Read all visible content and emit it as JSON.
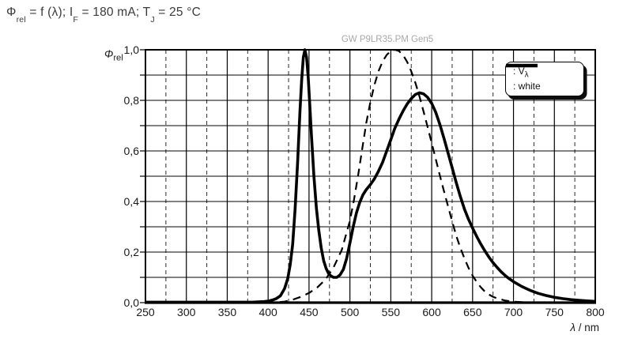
{
  "title": {
    "parts": [
      {
        "t": "Φ"
      },
      {
        "t": "rel",
        "sub": true
      },
      {
        "t": " = f (λ); I"
      },
      {
        "t": "F",
        "sub": true
      },
      {
        "t": " = 180 mA; T"
      },
      {
        "t": "J",
        "sub": true
      },
      {
        "t": " = 25 °C"
      }
    ]
  },
  "watermark": "GW P9LR35.PM Gen5",
  "legend": {
    "entries": [
      {
        "style": "dashed",
        "prefix": ": V",
        "sub": "λ"
      },
      {
        "style": "solid",
        "prefix": ": white",
        "sub": ""
      }
    ]
  },
  "chart_data": {
    "type": "line",
    "title": "GW P9LR35.PM Gen5",
    "ylabel_parts": [
      {
        "t": "Φ",
        "italic": true
      },
      {
        "t": "rel",
        "sub": true
      }
    ],
    "xlabel_parts": [
      {
        "t": "λ",
        "italic": true
      },
      {
        "t": " / nm"
      }
    ],
    "xlim": [
      250,
      800
    ],
    "ylim": [
      0,
      1
    ],
    "x_major_step": 50,
    "x_minor_step": 25,
    "y_minor_step": 0.1,
    "grid": true,
    "legend_position": "top-right-inside",
    "x_ticks": [
      {
        "v": 250,
        "label": "250"
      },
      {
        "v": 300,
        "label": "300"
      },
      {
        "v": 350,
        "label": "350"
      },
      {
        "v": 400,
        "label": "400"
      },
      {
        "v": 450,
        "label": "450"
      },
      {
        "v": 500,
        "label": "500"
      },
      {
        "v": 550,
        "label": "550"
      },
      {
        "v": 600,
        "label": "600"
      },
      {
        "v": 650,
        "label": "650"
      },
      {
        "v": 700,
        "label": "700"
      },
      {
        "v": 750,
        "label": "750"
      },
      {
        "v": 800,
        "label": "800"
      }
    ],
    "y_ticks": [
      {
        "v": 1.0,
        "label": "1,0"
      },
      {
        "v": 0.8,
        "label": "0,8"
      },
      {
        "v": 0.6,
        "label": "0,6"
      },
      {
        "v": 0.4,
        "label": "0,4"
      },
      {
        "v": 0.2,
        "label": "0,2"
      },
      {
        "v": 0.0,
        "label": "0,0"
      }
    ],
    "series": [
      {
        "name": "V_lambda",
        "style": "dashed",
        "peak": {
          "x": 555,
          "y": 1.0
        },
        "points": [
          [
            250,
            0
          ],
          [
            400,
            0.0004
          ],
          [
            410,
            0.0012
          ],
          [
            420,
            0.004
          ],
          [
            430,
            0.0116
          ],
          [
            440,
            0.023
          ],
          [
            450,
            0.038
          ],
          [
            460,
            0.06
          ],
          [
            470,
            0.091
          ],
          [
            480,
            0.139
          ],
          [
            490,
            0.208
          ],
          [
            500,
            0.323
          ],
          [
            505,
            0.407
          ],
          [
            510,
            0.503
          ],
          [
            515,
            0.608
          ],
          [
            520,
            0.71
          ],
          [
            525,
            0.793
          ],
          [
            530,
            0.862
          ],
          [
            535,
            0.915
          ],
          [
            540,
            0.954
          ],
          [
            545,
            0.98
          ],
          [
            550,
            0.995
          ],
          [
            555,
            1.0
          ],
          [
            560,
            0.995
          ],
          [
            565,
            0.979
          ],
          [
            570,
            0.952
          ],
          [
            575,
            0.915
          ],
          [
            580,
            0.87
          ],
          [
            585,
            0.816
          ],
          [
            590,
            0.757
          ],
          [
            595,
            0.695
          ],
          [
            600,
            0.631
          ],
          [
            605,
            0.567
          ],
          [
            610,
            0.503
          ],
          [
            615,
            0.441
          ],
          [
            620,
            0.381
          ],
          [
            625,
            0.321
          ],
          [
            630,
            0.265
          ],
          [
            635,
            0.217
          ],
          [
            640,
            0.175
          ],
          [
            645,
            0.138
          ],
          [
            650,
            0.107
          ],
          [
            655,
            0.082
          ],
          [
            660,
            0.061
          ],
          [
            665,
            0.044
          ],
          [
            670,
            0.032
          ],
          [
            675,
            0.023
          ],
          [
            680,
            0.017
          ],
          [
            690,
            0.0082
          ],
          [
            700,
            0.0041
          ],
          [
            710,
            0.0021
          ],
          [
            720,
            0.001
          ],
          [
            730,
            0.0005
          ],
          [
            750,
            0.0002
          ],
          [
            800,
            0
          ]
        ]
      },
      {
        "name": "white",
        "style": "solid",
        "peak": {
          "x": 445,
          "y": 1.0
        },
        "secondary_peak": {
          "x": 585,
          "y": 0.83
        },
        "dip": {
          "x": 482,
          "y": 0.1
        },
        "points": [
          [
            250,
            0.002
          ],
          [
            380,
            0.002
          ],
          [
            395,
            0.004
          ],
          [
            400,
            0.006
          ],
          [
            405,
            0.01
          ],
          [
            410,
            0.016
          ],
          [
            415,
            0.027
          ],
          [
            420,
            0.055
          ],
          [
            424,
            0.095
          ],
          [
            427,
            0.15
          ],
          [
            430,
            0.23
          ],
          [
            433,
            0.37
          ],
          [
            436,
            0.55
          ],
          [
            439,
            0.76
          ],
          [
            441,
            0.88
          ],
          [
            443,
            0.97
          ],
          [
            445,
            1.0
          ],
          [
            447,
            0.97
          ],
          [
            449,
            0.89
          ],
          [
            451,
            0.78
          ],
          [
            453,
            0.66
          ],
          [
            456,
            0.5
          ],
          [
            459,
            0.375
          ],
          [
            462,
            0.285
          ],
          [
            465,
            0.215
          ],
          [
            468,
            0.165
          ],
          [
            471,
            0.135
          ],
          [
            474,
            0.115
          ],
          [
            477,
            0.105
          ],
          [
            480,
            0.1
          ],
          [
            484,
            0.1
          ],
          [
            488,
            0.11
          ],
          [
            492,
            0.132
          ],
          [
            496,
            0.175
          ],
          [
            500,
            0.235
          ],
          [
            504,
            0.3
          ],
          [
            508,
            0.355
          ],
          [
            512,
            0.397
          ],
          [
            516,
            0.427
          ],
          [
            520,
            0.447
          ],
          [
            525,
            0.467
          ],
          [
            530,
            0.49
          ],
          [
            535,
            0.52
          ],
          [
            540,
            0.555
          ],
          [
            545,
            0.6
          ],
          [
            550,
            0.645
          ],
          [
            555,
            0.69
          ],
          [
            560,
            0.726
          ],
          [
            565,
            0.758
          ],
          [
            570,
            0.786
          ],
          [
            575,
            0.807
          ],
          [
            580,
            0.823
          ],
          [
            585,
            0.83
          ],
          [
            590,
            0.826
          ],
          [
            595,
            0.812
          ],
          [
            600,
            0.788
          ],
          [
            605,
            0.752
          ],
          [
            610,
            0.705
          ],
          [
            615,
            0.65
          ],
          [
            620,
            0.592
          ],
          [
            625,
            0.533
          ],
          [
            630,
            0.475
          ],
          [
            635,
            0.42
          ],
          [
            640,
            0.37
          ],
          [
            645,
            0.33
          ],
          [
            650,
            0.295
          ],
          [
            655,
            0.262
          ],
          [
            660,
            0.232
          ],
          [
            665,
            0.205
          ],
          [
            670,
            0.18
          ],
          [
            675,
            0.158
          ],
          [
            680,
            0.139
          ],
          [
            685,
            0.122
          ],
          [
            690,
            0.107
          ],
          [
            695,
            0.094
          ],
          [
            700,
            0.083
          ],
          [
            710,
            0.064
          ],
          [
            720,
            0.049
          ],
          [
            730,
            0.037
          ],
          [
            740,
            0.028
          ],
          [
            750,
            0.021
          ],
          [
            760,
            0.016
          ],
          [
            770,
            0.012
          ],
          [
            780,
            0.009
          ],
          [
            790,
            0.007
          ],
          [
            800,
            0.005
          ]
        ]
      }
    ]
  }
}
